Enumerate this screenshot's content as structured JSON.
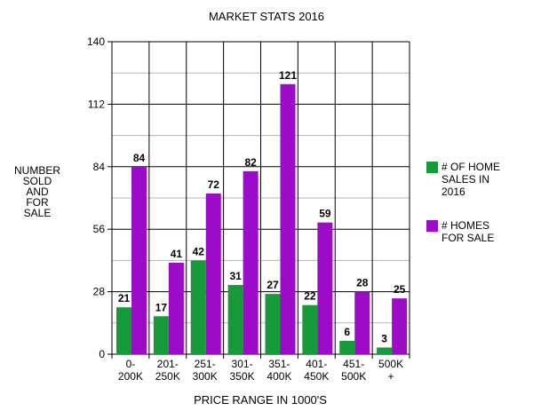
{
  "chart_data": {
    "type": "bar",
    "title": "MARKET STATS 2016",
    "xlabel": "PRICE RANGE IN 1000'S",
    "ylabel_lines": [
      "NUMBER",
      "SOLD",
      "AND",
      "FOR",
      "SALE"
    ],
    "categories": [
      [
        "0-",
        "200K"
      ],
      [
        "201-",
        "250K"
      ],
      [
        "251-",
        "300K"
      ],
      [
        "301-",
        "350K"
      ],
      [
        "351-",
        "400K"
      ],
      [
        "401-",
        "450K"
      ],
      [
        "451-",
        "500K"
      ],
      [
        "500K",
        "+"
      ]
    ],
    "series": [
      {
        "name_lines": [
          "# OF HOME",
          "SALES IN",
          "2016"
        ],
        "color": "#169a3a",
        "values": [
          21,
          17,
          42,
          31,
          27,
          22,
          6,
          3
        ]
      },
      {
        "name_lines": [
          "# HOMES",
          "FOR SALE"
        ],
        "color": "#9b0bc8",
        "values": [
          84,
          41,
          72,
          82,
          121,
          59,
          28,
          25
        ]
      }
    ],
    "ylim": [
      0,
      140
    ],
    "yticks": [
      0,
      28,
      56,
      84,
      112,
      140
    ],
    "minor_gridlines": true,
    "legend_position": "right"
  }
}
